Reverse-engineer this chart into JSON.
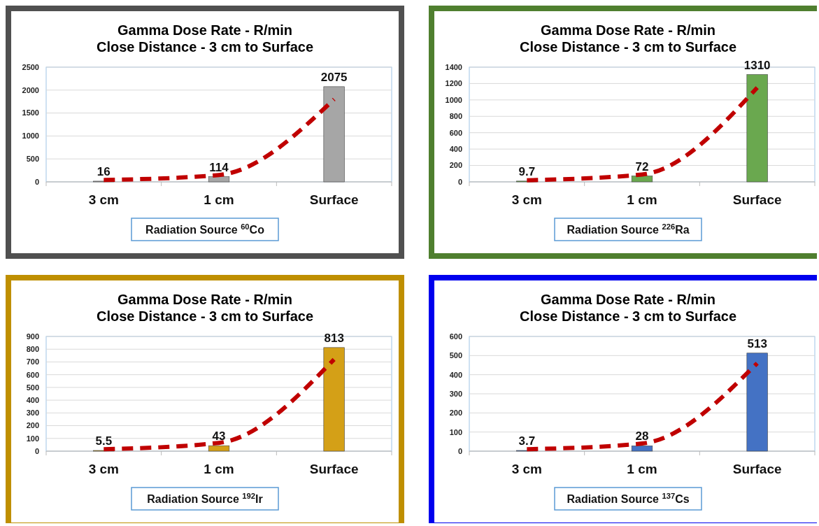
{
  "chart_data": [
    {
      "type": "bar",
      "title": "Gamma Dose Rate - R/min",
      "subtitle": "Close Distance - 3 cm to Surface",
      "categories": [
        "3 cm",
        "1 cm",
        "Surface"
      ],
      "series": [
        {
          "color": "#a6a6a6",
          "values": [
            16,
            114,
            2075
          ],
          "value_labels": [
            "16",
            "114",
            "2075"
          ]
        },
        {
          "type": "line",
          "color": "#c00000",
          "line_style": "dashed",
          "values": [
            40,
            150,
            1800
          ]
        }
      ],
      "ylim": [
        0,
        2500
      ],
      "yticks": [
        0,
        500,
        1000,
        1500,
        2000,
        2500
      ],
      "grid": "y",
      "annotations": [
        "Radiation Source $^{60}$Co"
      ]
    },
    {
      "type": "bar",
      "title": "Gamma Dose Rate - R/min",
      "subtitle": "Close Distance - 3 cm to Surface",
      "categories": [
        "3 cm",
        "1 cm",
        "Surface"
      ],
      "series": [
        {
          "color": "#6aa84f",
          "values": [
            9.7,
            72,
            1310
          ],
          "value_labels": [
            "9.7",
            "72",
            "1310"
          ]
        },
        {
          "type": "line",
          "color": "#c00000",
          "line_style": "dashed",
          "values": [
            20,
            90,
            1150
          ]
        }
      ],
      "ylim": [
        0,
        1400
      ],
      "yticks": [
        0,
        200,
        400,
        600,
        800,
        1000,
        1200,
        1400
      ],
      "grid": "y",
      "annotations": [
        "Radiation Source $^{226}$Ra"
      ]
    },
    {
      "type": "bar",
      "title": "Gamma Dose Rate - R/min",
      "subtitle": "Close Distance - 3 cm to Surface",
      "categories": [
        "3 cm",
        "1 cm",
        "Surface"
      ],
      "series": [
        {
          "color": "#d4a017",
          "values": [
            5.5,
            43,
            813
          ],
          "value_labels": [
            "5.5",
            "43",
            "813"
          ]
        },
        {
          "type": "line",
          "color": "#c00000",
          "line_style": "dashed",
          "values": [
            15,
            65,
            720
          ]
        }
      ],
      "ylim": [
        0,
        900
      ],
      "yticks": [
        0,
        100,
        200,
        300,
        400,
        500,
        600,
        700,
        800,
        900
      ],
      "grid": "y",
      "annotations": [
        "Radiation Source $^{192}$Ir"
      ]
    },
    {
      "type": "bar",
      "title": "Gamma Dose Rate - R/min",
      "subtitle": "Close Distance - 3 cm to Surface",
      "categories": [
        "3 cm",
        "1 cm",
        "Surface"
      ],
      "series": [
        {
          "color": "#4472c4",
          "values": [
            3.7,
            28,
            513
          ],
          "value_labels": [
            "3.7",
            "28",
            "513"
          ]
        },
        {
          "type": "line",
          "color": "#c00000",
          "line_style": "dashed",
          "values": [
            10,
            40,
            460
          ]
        }
      ],
      "ylim": [
        0,
        600
      ],
      "yticks": [
        0,
        100,
        200,
        300,
        400,
        500,
        600
      ],
      "grid": "y",
      "annotations": [
        "Radiation Source $^{137}$Cs"
      ]
    }
  ]
}
